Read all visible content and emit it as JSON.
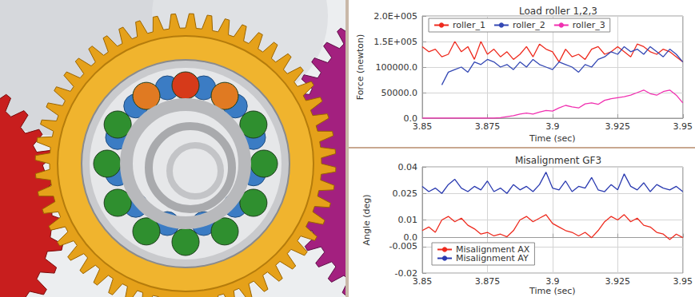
{
  "chart_data": [
    {
      "type": "line",
      "title": "Load roller 1,2,3",
      "x_label": "Time (sec)",
      "y_label": "Force (newton)",
      "x": [
        3.85,
        3.8525,
        3.855,
        3.8575,
        3.86,
        3.8625,
        3.865,
        3.8675,
        3.87,
        3.8725,
        3.875,
        3.8775,
        3.88,
        3.8825,
        3.885,
        3.8875,
        3.89,
        3.8925,
        3.895,
        3.8975,
        3.9,
        3.9025,
        3.905,
        3.9075,
        3.91,
        3.9125,
        3.915,
        3.9175,
        3.92,
        3.9225,
        3.925,
        3.9275,
        3.93,
        3.9325,
        3.935,
        3.9375,
        3.94,
        3.9425,
        3.945,
        3.9475,
        3.95
      ],
      "series": [
        {
          "name": "roller_1",
          "color": "#ee2a1e",
          "values": [
            140000,
            130000,
            135000,
            120000,
            125000,
            150000,
            130000,
            140000,
            115000,
            150000,
            125000,
            135000,
            120000,
            130000,
            115000,
            125000,
            140000,
            120000,
            145000,
            135000,
            130000,
            110000,
            135000,
            120000,
            125000,
            115000,
            135000,
            140000,
            125000,
            130000,
            140000,
            130000,
            120000,
            145000,
            140000,
            130000,
            125000,
            135000,
            130000,
            120000,
            110000
          ]
        },
        {
          "name": "roller_2",
          "color": "#3448b4",
          "values": [
            null,
            null,
            null,
            65000,
            90000,
            95000,
            100000,
            90000,
            110000,
            105000,
            115000,
            110000,
            100000,
            105000,
            95000,
            110000,
            100000,
            115000,
            105000,
            100000,
            95000,
            110000,
            105000,
            100000,
            90000,
            105000,
            100000,
            115000,
            120000,
            130000,
            125000,
            140000,
            130000,
            135000,
            125000,
            140000,
            130000,
            120000,
            135000,
            125000,
            110000
          ]
        },
        {
          "name": "roller_3",
          "color": "#f030b0",
          "values": [
            0,
            0,
            0,
            0,
            0,
            0,
            0,
            0,
            0,
            0,
            0,
            0,
            1000,
            3000,
            5000,
            8000,
            10000,
            8000,
            12000,
            15000,
            14000,
            20000,
            25000,
            22000,
            20000,
            28000,
            30000,
            27000,
            35000,
            38000,
            40000,
            42000,
            45000,
            50000,
            55000,
            48000,
            45000,
            52000,
            55000,
            45000,
            30000
          ]
        }
      ],
      "xlim": [
        3.85,
        3.95
      ],
      "xticks": [
        3.85,
        3.875,
        3.9,
        3.925,
        3.95
      ],
      "ylim": [
        0,
        200000
      ],
      "yticks": [
        {
          "value": 0,
          "label": "0.0"
        },
        {
          "value": 50000,
          "label": "50000.0"
        },
        {
          "value": 100000,
          "label": "100000.0"
        },
        {
          "value": 150000,
          "label": "1.5E+005"
        },
        {
          "value": 200000,
          "label": "2.0E+005"
        }
      ],
      "grid": true,
      "legend": "top"
    },
    {
      "type": "line",
      "title": "Misalignment GF3",
      "x_label": "Time (sec)",
      "y_label": "Angle (deg)",
      "x": [
        3.85,
        3.8525,
        3.855,
        3.8575,
        3.86,
        3.8625,
        3.865,
        3.8675,
        3.87,
        3.8725,
        3.875,
        3.8775,
        3.88,
        3.8825,
        3.885,
        3.8875,
        3.89,
        3.8925,
        3.895,
        3.8975,
        3.9,
        3.9025,
        3.905,
        3.9075,
        3.91,
        3.9125,
        3.915,
        3.9175,
        3.92,
        3.9225,
        3.925,
        3.9275,
        3.93,
        3.9325,
        3.935,
        3.9375,
        3.94,
        3.9425,
        3.945,
        3.9475,
        3.95
      ],
      "series": [
        {
          "name": "Misalignment AX",
          "color": "#ee2a1e",
          "values": [
            0.004,
            0.006,
            0.003,
            0.01,
            0.012,
            0.009,
            0.011,
            0.007,
            0.005,
            0.002,
            0.003,
            0.001,
            0.002,
            0.0005,
            0.004,
            0.01,
            0.012,
            0.009,
            0.011,
            0.013,
            0.008,
            0.006,
            0.004,
            0.003,
            0.001,
            0.003,
            0.0,
            0.004,
            0.009,
            0.012,
            0.01,
            0.013,
            0.009,
            0.011,
            0.007,
            0.006,
            0.003,
            0.002,
            -0.001,
            0.002,
            0.0
          ]
        },
        {
          "name": "Misalignment AY",
          "color": "#2a3ab0",
          "values": [
            0.029,
            0.026,
            0.028,
            0.025,
            0.03,
            0.033,
            0.028,
            0.026,
            0.029,
            0.027,
            0.032,
            0.026,
            0.028,
            0.025,
            0.03,
            0.027,
            0.029,
            0.026,
            0.03,
            0.037,
            0.028,
            0.027,
            0.032,
            0.026,
            0.029,
            0.028,
            0.034,
            0.027,
            0.026,
            0.03,
            0.027,
            0.036,
            0.029,
            0.027,
            0.031,
            0.026,
            0.03,
            0.028,
            0.027,
            0.029,
            0.026
          ]
        }
      ],
      "xlim": [
        3.85,
        3.95
      ],
      "xticks": [
        3.85,
        3.875,
        3.9,
        3.925,
        3.95
      ],
      "ylim": [
        -0.02,
        0.04
      ],
      "yticks": [
        -0.02,
        -0.005,
        {
          "value": 0,
          "label": "0.0"
        },
        0.01,
        0.025,
        0.04
      ],
      "grid": true,
      "legend": "lower left"
    }
  ]
}
